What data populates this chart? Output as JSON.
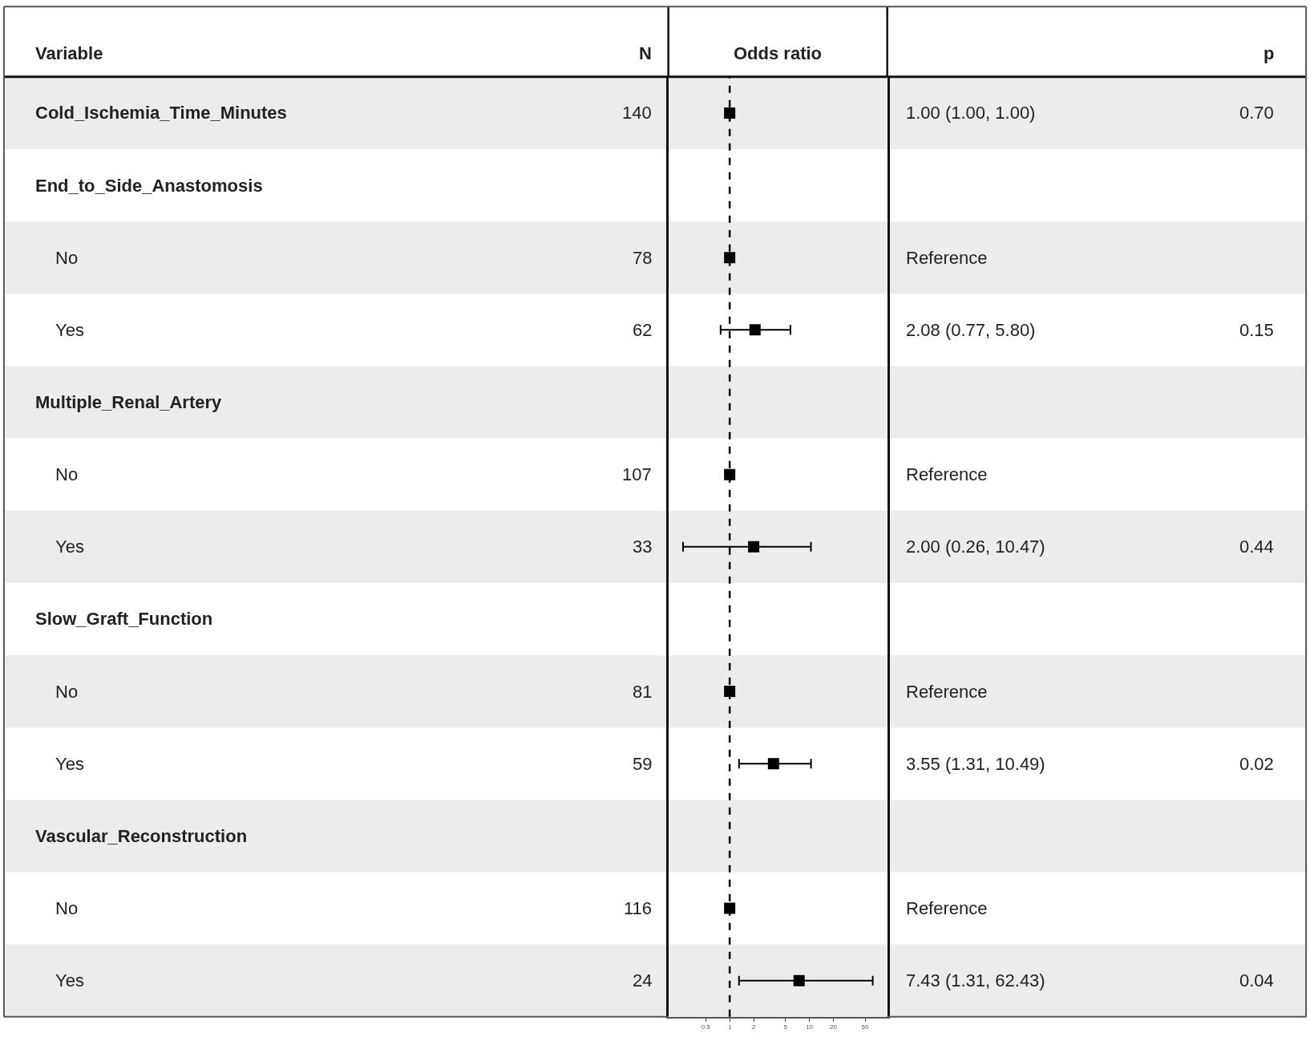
{
  "chart_data": [
    {
      "type": "other",
      "xlabel": "Variable",
      "ylabel": "N",
      "categories": [
        "Cold_Ischemia_Time_Minutes",
        "End_to_Side_Anastomosis",
        "No",
        "Yes",
        "Multiple_Renal_Artery",
        "No",
        "Yes",
        "Slow_Graft_Function",
        "No",
        "Yes",
        "Vascular_Reconstruction",
        "No",
        "Yes"
      ],
      "values": [
        140,
        null,
        78,
        62,
        null,
        107,
        33,
        null,
        81,
        59,
        null,
        116,
        24
      ],
      "data_labels": true
    },
    {
      "type": "scatter",
      "orientation": "horizontal",
      "title": "Odds ratio",
      "categories": [
        null,
        null,
        null,
        null,
        null,
        null,
        null,
        null,
        null,
        null,
        null,
        null,
        null
      ],
      "values": [
        1.0,
        null,
        1,
        2.08,
        null,
        1,
        2.0,
        null,
        1,
        3.55,
        null,
        1,
        7.43
      ],
      "errors": [
        [
          1.0,
          1.0
        ],
        null,
        null,
        [
          0.77,
          5.8
        ],
        null,
        null,
        [
          0.26,
          10.47
        ],
        null,
        null,
        [
          1.31,
          10.49
        ],
        null,
        null,
        [
          1.31,
          62.43
        ]
      ],
      "color": "#000000",
      "marker": "square",
      "log": "x",
      "xlim": [
        0.17,
        95
      ],
      "xticks": [
        0.5,
        1,
        2,
        5,
        10,
        20,
        50
      ],
      "ref_lines": [
        {
          "axis": "x",
          "value": 1,
          "line_style": "dashed",
          "color": "#000000"
        }
      ],
      "tick_labels": "x",
      "grid": false,
      "legend": false
    },
    {
      "type": "other",
      "ylabel": "p",
      "categories": [
        "1.00 (1.00, 1.00)",
        null,
        "Reference",
        "2.08 (0.77, 5.80)",
        null,
        "Reference",
        "2.00 (0.26, 10.47)",
        null,
        "Reference",
        "3.55 (1.31, 10.49)",
        null,
        "Reference",
        "7.43 (1.31, 62.43)"
      ],
      "values": [
        0.7,
        null,
        null,
        0.15,
        null,
        null,
        0.44,
        null,
        null,
        0.02,
        null,
        null,
        0.04
      ],
      "value_labels": [
        "0.70",
        null,
        null,
        "0.15",
        null,
        null,
        "0.44",
        null,
        null,
        "0.02",
        null,
        null,
        "0.04"
      ]
    }
  ]
}
